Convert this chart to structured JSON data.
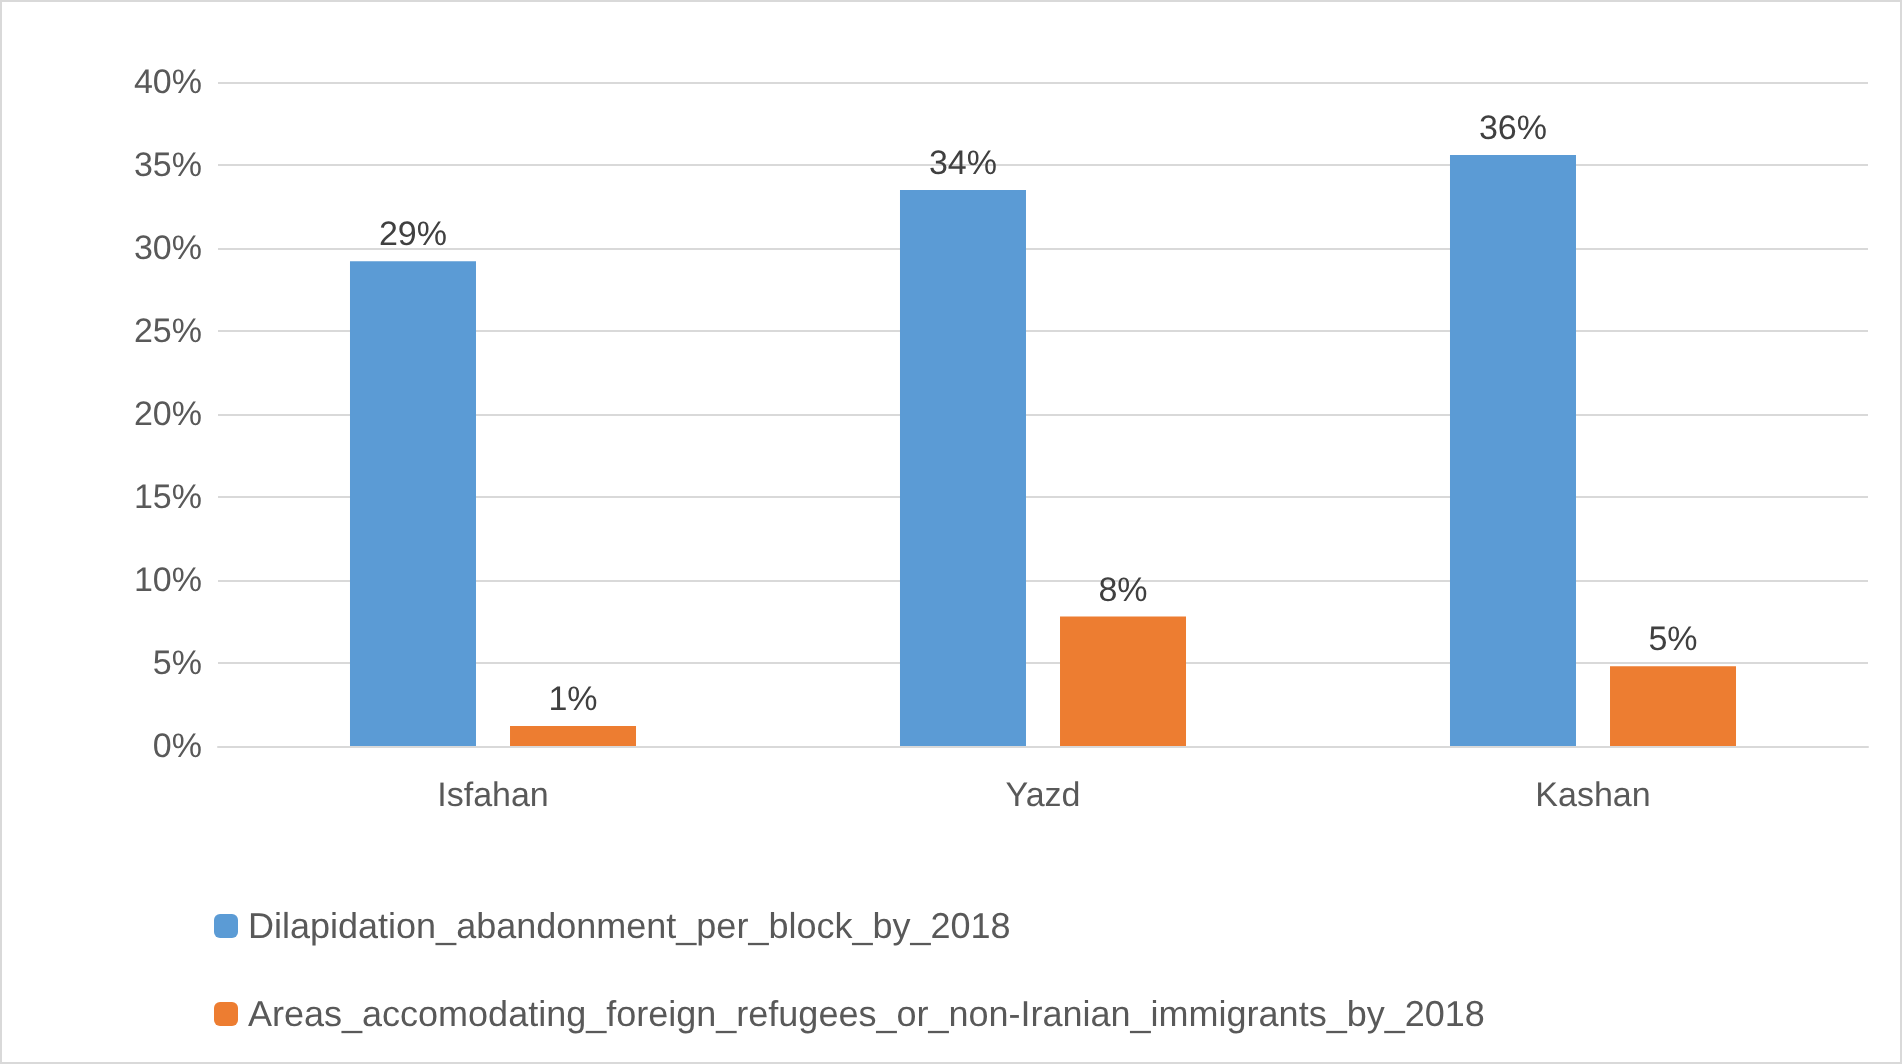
{
  "chart_data": {
    "type": "bar",
    "categories": [
      "Isfahan",
      "Yazd",
      "Kashan"
    ],
    "series": [
      {
        "name": "Dilapidation_abandonment_per_block_by_2018",
        "color": "#5b9bd5",
        "values": [
          29.2,
          33.5,
          35.6
        ],
        "value_labels": [
          "29%",
          "34%",
          "36%"
        ]
      },
      {
        "name": "Areas_accomodating_foreign_refugees_or_non-Iranian_immigrants_by_2018",
        "color": "#ed7d31",
        "values": [
          1.2,
          7.8,
          4.8
        ],
        "value_labels": [
          "1%",
          "8%",
          "5%"
        ]
      }
    ],
    "ylim": [
      0,
      40
    ],
    "yticks": [
      {
        "value": 0,
        "label": "0%"
      },
      {
        "value": 5,
        "label": "5%"
      },
      {
        "value": 10,
        "label": "10%"
      },
      {
        "value": 15,
        "label": "15%"
      },
      {
        "value": 20,
        "label": "20%"
      },
      {
        "value": 25,
        "label": "25%"
      },
      {
        "value": 30,
        "label": "30%"
      },
      {
        "value": 35,
        "label": "35%"
      },
      {
        "value": 40,
        "label": "40%"
      }
    ],
    "grid": "y",
    "legend": "bottom"
  }
}
